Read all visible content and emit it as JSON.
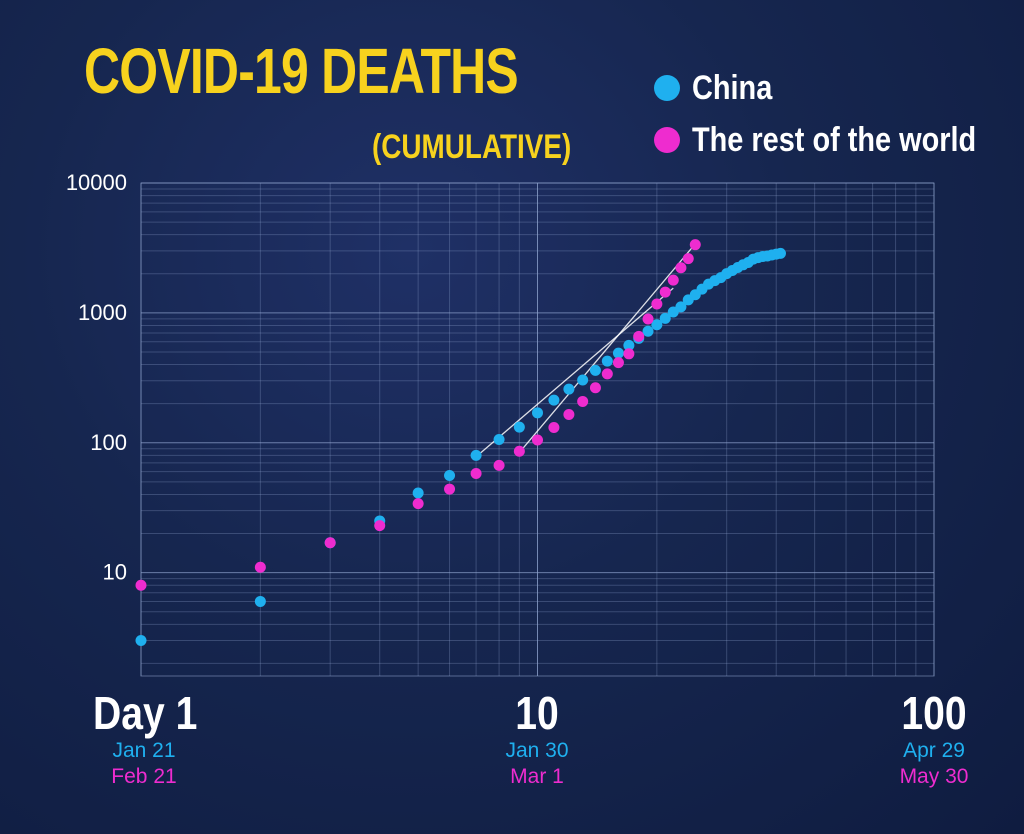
{
  "title": "COVID-19 DEATHS",
  "subtitle": "(CUMULATIVE)",
  "legend": [
    {
      "label": "China",
      "color": "#1fb0ef"
    },
    {
      "label": "The rest of the world",
      "color": "#ee2ccf"
    }
  ],
  "x_ticks": [
    {
      "label": "Day 1",
      "date1": "Jan 21",
      "date2": "Feb 21"
    },
    {
      "label": "10",
      "date1": "Jan 30",
      "date2": "Mar 1"
    },
    {
      "label": "100",
      "date1": "Apr 29",
      "date2": "May 30"
    }
  ],
  "chart_data": {
    "type": "scatter",
    "title": "COVID-19 DEATHS",
    "subtitle": "(CUMULATIVE)",
    "x_scale": "log",
    "y_scale": "log",
    "xlim": [
      1,
      100
    ],
    "ylim": [
      1.6,
      10000
    ],
    "y_tick_labels": [
      "10",
      "100",
      "1000",
      "10000"
    ],
    "legend_position": "top-right",
    "grid": true,
    "series": [
      {
        "name": "China",
        "color": "#1fb0ef",
        "x": [
          1,
          2,
          3,
          4,
          5,
          6,
          7,
          8,
          9,
          10,
          11,
          12,
          13,
          14,
          15,
          16,
          17,
          18,
          19,
          20,
          21,
          22,
          23,
          24,
          25,
          26,
          27,
          28,
          29,
          30,
          31,
          32,
          33,
          34,
          35,
          36,
          37,
          38,
          39,
          40,
          41
        ],
        "y": [
          3,
          6,
          17,
          25,
          41,
          56,
          80,
          106,
          132,
          170,
          213,
          259,
          304,
          361,
          425,
          490,
          562,
          636,
          722,
          811,
          908,
          1016,
          1113,
          1259,
          1380,
          1523,
          1665,
          1770,
          1868,
          2004,
          2118,
          2236,
          2345,
          2442,
          2592,
          2663,
          2715,
          2744,
          2788,
          2835,
          2870
        ]
      },
      {
        "name": "The rest of the world",
        "color": "#ee2ccf",
        "x": [
          1,
          2,
          3,
          4,
          5,
          6,
          7,
          8,
          9,
          10,
          11,
          12,
          13,
          14,
          15,
          16,
          17,
          18,
          19,
          20,
          21,
          22,
          23,
          24,
          25
        ],
        "y": [
          8,
          11,
          17,
          23,
          34,
          44,
          58,
          67,
          86,
          105,
          131,
          165,
          208,
          265,
          339,
          414,
          484,
          659,
          897,
          1170,
          1446,
          1787,
          2225,
          2615,
          3350
        ]
      }
    ],
    "trend_lines": [
      {
        "series": "China",
        "x": [
          7,
          22
        ],
        "y": [
          78,
          1550
        ]
      },
      {
        "series": "The rest of the world",
        "x": [
          9,
          25
        ],
        "y": [
          84,
          3400
        ]
      }
    ]
  }
}
